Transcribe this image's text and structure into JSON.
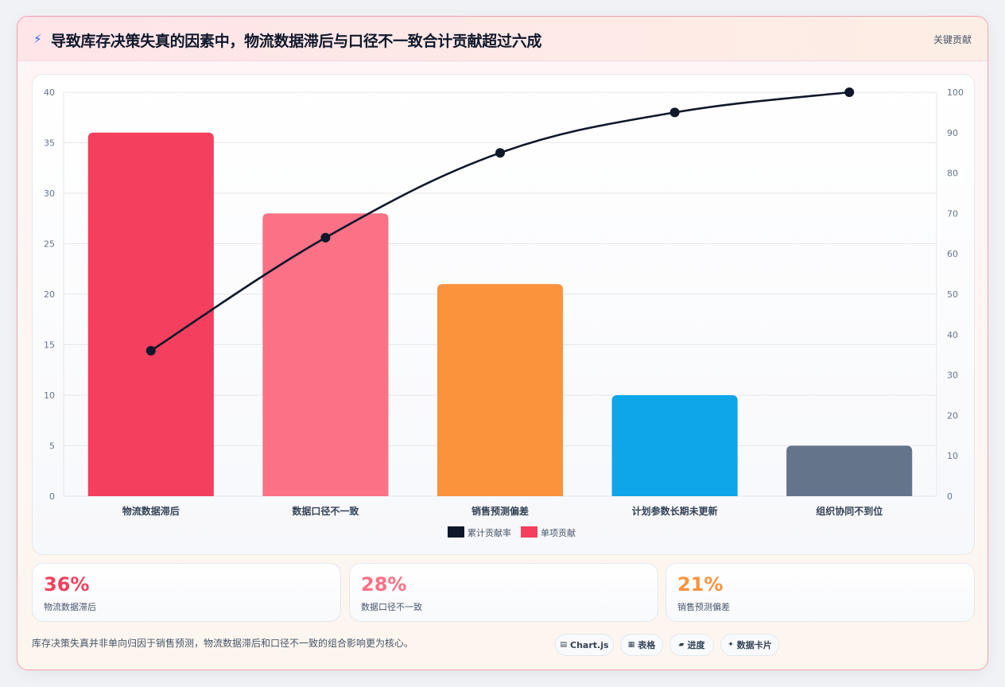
{
  "header": {
    "title": "导致库存决策失真的因素中，物流数据滞后与口径不一致合计贡献超过六成",
    "tag": "关键贡献"
  },
  "colors": {
    "bars": [
      "#f43f5e",
      "#fb7185",
      "#fb923c",
      "#0ea5e9",
      "#64748b"
    ],
    "line": "#0f172a"
  },
  "chart_data": {
    "type": "bar",
    "categories": [
      "物流数据滞后",
      "数据口径不一致",
      "销售预测偏差",
      "计划参数长期未更新",
      "组织协同不到位"
    ],
    "series": [
      {
        "name": "单项贡献",
        "type": "bar",
        "axis": "left",
        "values": [
          36,
          28,
          21,
          10,
          5
        ]
      },
      {
        "name": "累计贡献率",
        "type": "line",
        "axis": "right",
        "values": [
          36,
          64,
          85,
          95,
          100
        ]
      }
    ],
    "y_left": {
      "min": 0,
      "max": 40,
      "ticks": [
        "0",
        "5",
        "10",
        "15",
        "20",
        "25",
        "30",
        "35",
        "40"
      ]
    },
    "y_right": {
      "min": 0,
      "max": 100,
      "ticks": [
        "0",
        "10",
        "20",
        "30",
        "40",
        "50",
        "60",
        "70",
        "80",
        "90",
        "100"
      ]
    },
    "legend": {
      "position": "bottom",
      "items": [
        "累计贡献率",
        "单项贡献"
      ]
    },
    "grid": true
  },
  "stats": [
    {
      "value": "36%",
      "label": "物流数据滞后",
      "color": "#f43f5e"
    },
    {
      "value": "28%",
      "label": "数据口径不一致",
      "color": "#fb7185"
    },
    {
      "value": "21%",
      "label": "销售预测偏差",
      "color": "#fb923c"
    }
  ],
  "footer": {
    "note": "库存决策失真并非单向归因于销售预测，物流数据滞后和口径不一致的组合影响更为核心。",
    "chips": [
      {
        "icon": "bar-chart-icon",
        "glyph": "▤",
        "label": "Chart.js"
      },
      {
        "icon": "table-icon",
        "glyph": "▦",
        "label": "表格"
      },
      {
        "icon": "progress-icon",
        "glyph": "▰",
        "label": "进度"
      },
      {
        "icon": "sparkle-icon",
        "glyph": "✦",
        "label": "数据卡片"
      }
    ]
  }
}
